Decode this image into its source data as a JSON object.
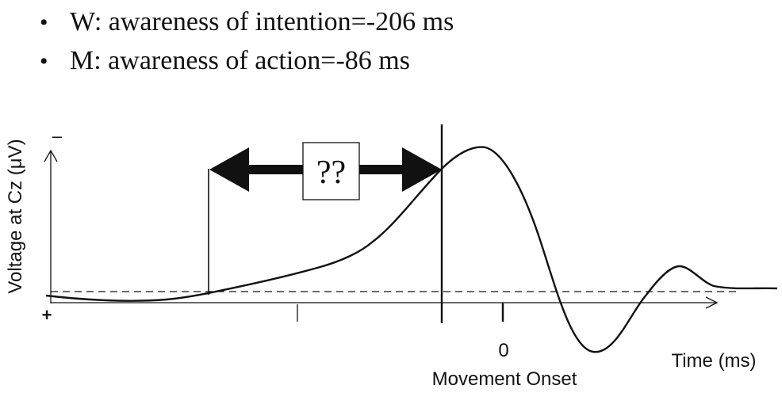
{
  "bullets": [
    {
      "bullet": "•",
      "text": "W: awareness of intention=-206 ms"
    },
    {
      "bullet": "•",
      "text": "M: awareness of action=-86 ms"
    }
  ],
  "diagram": {
    "y_axis_label": "Voltage at Cz (μV)",
    "y_axis_top_sign": "–",
    "y_axis_bottom_sign": "+",
    "zero_tick_label": "0",
    "x_axis_label": "Time (ms)",
    "movement_label": "Movement Onset",
    "gap_box_label": "??"
  }
}
